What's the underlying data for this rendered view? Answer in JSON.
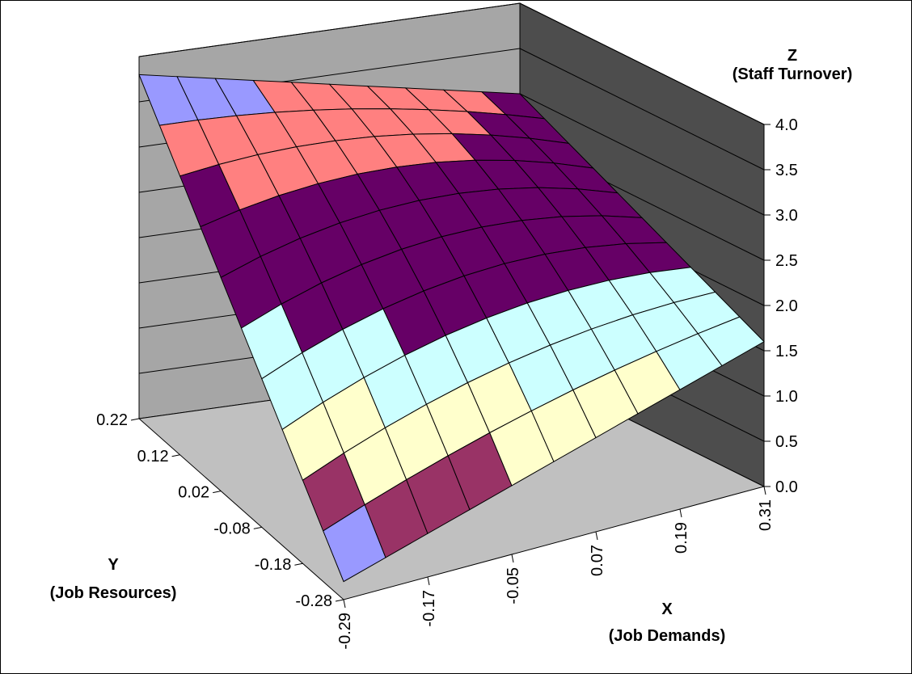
{
  "chart_data": {
    "type": "surface",
    "title": "",
    "x_axis": {
      "label_line1": "X",
      "label_line2": "(Job Demands)",
      "ticks": [
        "-0.29",
        "-0.17",
        "-0.05",
        "0.07",
        "0.19",
        "0.31"
      ],
      "range": [
        -0.29,
        0.31
      ]
    },
    "y_axis": {
      "label_line1": "Y",
      "label_line2": "(Job Resources)",
      "ticks": [
        "0.22",
        "0.12",
        "0.02",
        "-0.08",
        "-0.18",
        "-0.28"
      ],
      "range": [
        -0.28,
        0.22
      ]
    },
    "z_axis": {
      "label_line1": "Z",
      "label_line2": "(Staff Turnover)",
      "ticks": [
        "0.0",
        "0.5",
        "1.0",
        "1.5",
        "2.0",
        "2.5",
        "3.0",
        "3.5",
        "4.0"
      ],
      "range": [
        0,
        4
      ]
    },
    "grid": true,
    "surface": {
      "x": [
        -0.29,
        -0.23,
        -0.17,
        -0.11,
        -0.05,
        0.01,
        0.07,
        0.13,
        0.19,
        0.25,
        0.31
      ],
      "y": [
        0.22,
        0.17,
        0.12,
        0.07,
        0.02,
        -0.03,
        -0.08,
        -0.13,
        -0.18,
        -0.23,
        -0.28
      ],
      "z_at_corners": {
        "x_min_y_max": 3.8,
        "x_max_y_max": 3.0,
        "x_min_y_min": 0.2,
        "x_max_y_min": 1.6
      },
      "z_at_center": 2.55,
      "saddle_curvature": 2.2
    },
    "color_bands": [
      {
        "range": [
          0.0,
          0.5
        ],
        "color": "#9999ff"
      },
      {
        "range": [
          0.5,
          1.0
        ],
        "color": "#993366"
      },
      {
        "range": [
          1.0,
          1.5
        ],
        "color": "#ffffcc"
      },
      {
        "range": [
          1.5,
          2.0
        ],
        "color": "#ccffff"
      },
      {
        "range": [
          2.0,
          2.5
        ],
        "color": "#660066"
      },
      {
        "range": [
          2.5,
          3.0
        ],
        "color": "#660066"
      },
      {
        "range": [
          3.0,
          3.5
        ],
        "color": "#ff8080"
      },
      {
        "range": [
          3.5,
          4.0
        ],
        "color": "#9999ff"
      }
    ],
    "colors": {
      "back_wall": "#a6a6a6",
      "side_wall": "#4d4d4d",
      "floor": "#c0c0c0",
      "grid_line": "#000000"
    }
  }
}
